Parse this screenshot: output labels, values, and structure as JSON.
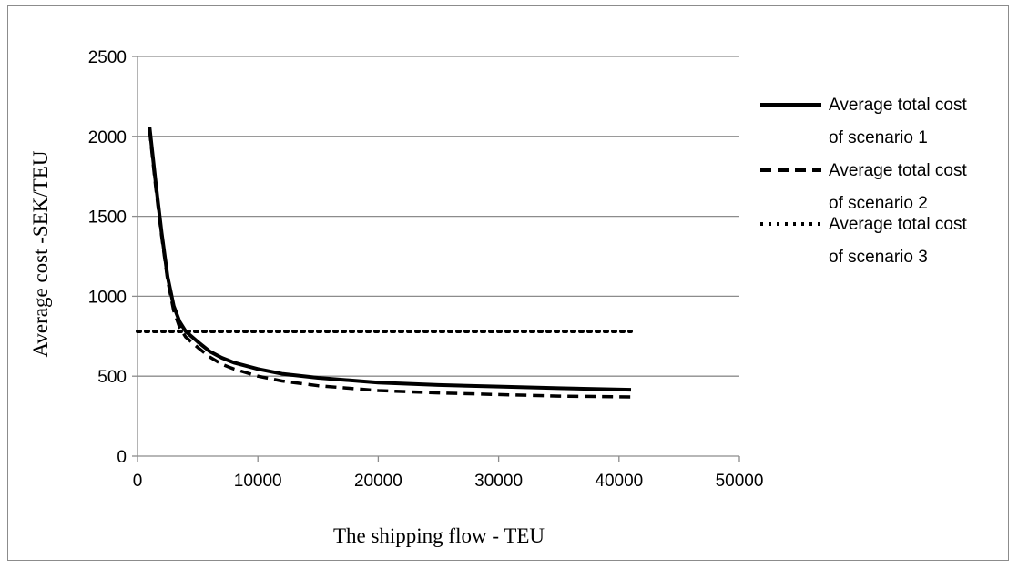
{
  "chart_data": {
    "type": "line",
    "title": "",
    "xlabel": "The shipping flow - TEU",
    "ylabel": "Average cost -SEK/TEU",
    "xlim": [
      0,
      50000
    ],
    "ylim": [
      0,
      2500
    ],
    "xticks": [
      0,
      10000,
      20000,
      30000,
      40000,
      50000
    ],
    "yticks": [
      0,
      500,
      1000,
      1500,
      2000,
      2500
    ],
    "grid": "horizontal",
    "legend_position": "right",
    "series": [
      {
        "name": "Average total cost of scenario 1",
        "style": "solid",
        "color": "#000000",
        "points": [
          [
            1000,
            2060
          ],
          [
            1500,
            1720
          ],
          [
            2000,
            1400
          ],
          [
            2500,
            1120
          ],
          [
            3000,
            940
          ],
          [
            3500,
            840
          ],
          [
            4000,
            780
          ],
          [
            5000,
            715
          ],
          [
            6000,
            655
          ],
          [
            7000,
            615
          ],
          [
            8000,
            585
          ],
          [
            10000,
            545
          ],
          [
            12000,
            515
          ],
          [
            15000,
            490
          ],
          [
            20000,
            460
          ],
          [
            25000,
            445
          ],
          [
            30000,
            435
          ],
          [
            35000,
            425
          ],
          [
            41000,
            415
          ]
        ]
      },
      {
        "name": "Average total cost of scenario 2",
        "style": "dashed",
        "color": "#000000",
        "points": [
          [
            1000,
            2040
          ],
          [
            1500,
            1690
          ],
          [
            2000,
            1380
          ],
          [
            2500,
            1100
          ],
          [
            3000,
            910
          ],
          [
            3500,
            805
          ],
          [
            4000,
            745
          ],
          [
            5000,
            680
          ],
          [
            6000,
            620
          ],
          [
            7000,
            575
          ],
          [
            8000,
            545
          ],
          [
            10000,
            500
          ],
          [
            12000,
            470
          ],
          [
            15000,
            440
          ],
          [
            20000,
            410
          ],
          [
            25000,
            395
          ],
          [
            30000,
            385
          ],
          [
            35000,
            375
          ],
          [
            41000,
            370
          ]
        ]
      },
      {
        "name": "Average total cost of scenario 3",
        "style": "dotted",
        "color": "#000000",
        "points": [
          [
            0,
            780
          ],
          [
            41000,
            780
          ]
        ]
      }
    ]
  },
  "legend": [
    {
      "line1": "Average total cost",
      "line2": "of scenario 1"
    },
    {
      "line1": "Average total cost",
      "line2": "of scenario 2"
    },
    {
      "line1": "Average total cost",
      "line2": "of scenario 3"
    }
  ]
}
